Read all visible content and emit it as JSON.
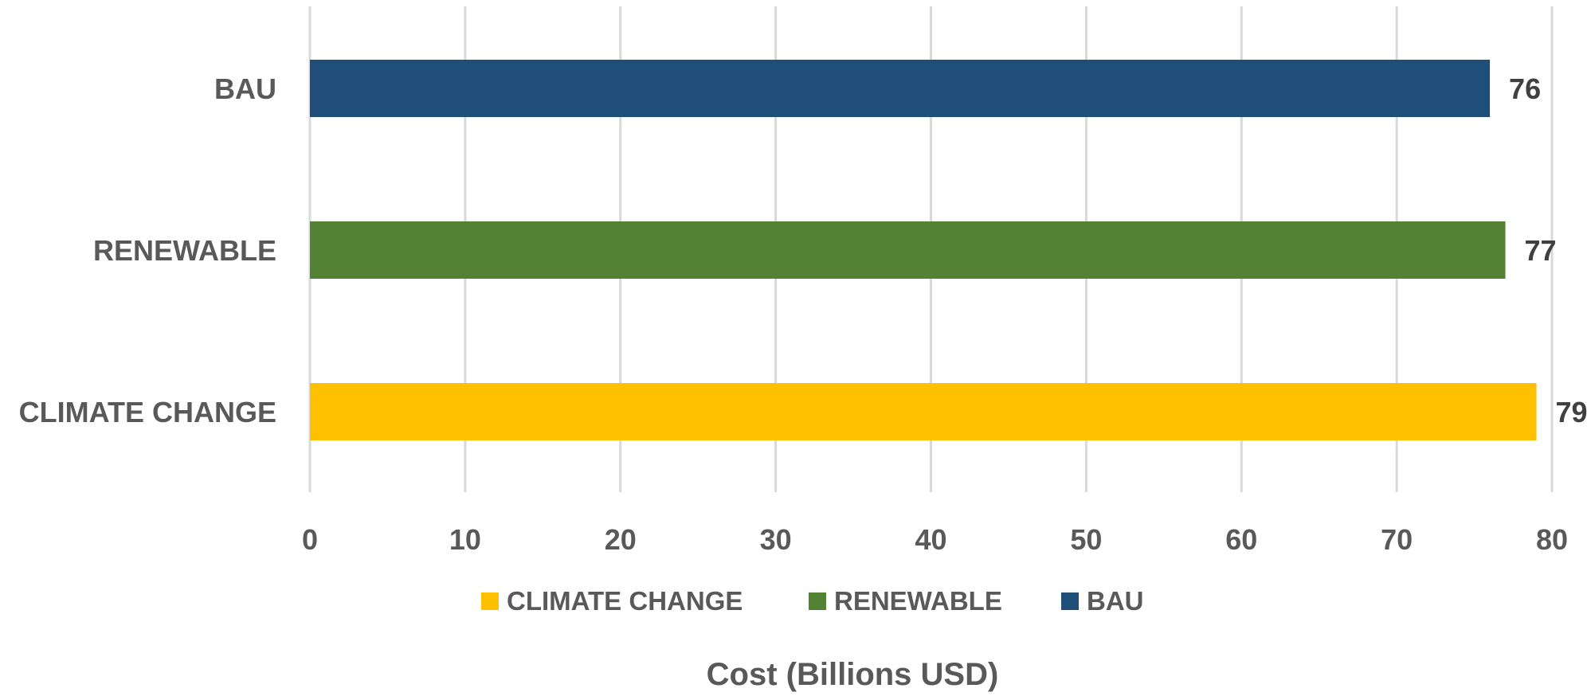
{
  "chart_data": {
    "type": "bar",
    "orientation": "horizontal",
    "categories": [
      "BAU",
      "RENEWABLE",
      "CLIMATE CHANGE"
    ],
    "values": [
      76,
      77,
      79
    ],
    "data_labels": [
      "76",
      "77",
      "79"
    ],
    "colors": [
      "#1f4e79",
      "#548235",
      "#ffc000"
    ],
    "xlabel": "Cost (Billions USD)",
    "ylabel": "",
    "xlim": [
      0,
      80
    ],
    "xticks": [
      "0",
      "10",
      "20",
      "30",
      "40",
      "50",
      "60",
      "70",
      "80"
    ],
    "grid": "vertical",
    "legend": {
      "position": "bottom",
      "entries": [
        {
          "label": "CLIMATE CHANGE",
          "color": "#ffc000"
        },
        {
          "label": "RENEWABLE",
          "color": "#548235"
        },
        {
          "label": "BAU",
          "color": "#1f4e79"
        }
      ]
    }
  }
}
